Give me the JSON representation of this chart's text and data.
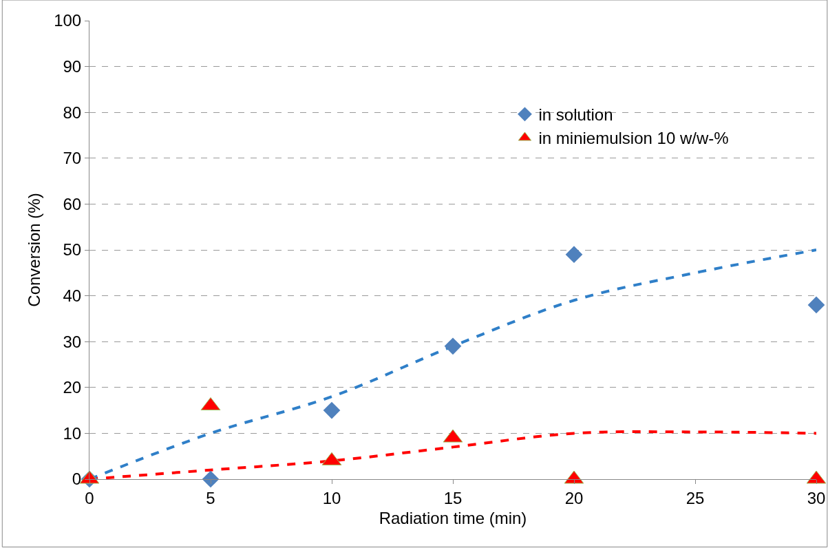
{
  "chart_data": {
    "type": "scatter",
    "xlabel": "Radiation time (min)",
    "ylabel": "Conversion (%)",
    "xlim": [
      0,
      30
    ],
    "xticks": [
      0,
      5,
      10,
      15,
      20,
      25,
      30
    ],
    "ylim": [
      0,
      100
    ],
    "yticks": [
      0,
      10,
      20,
      30,
      40,
      50,
      60,
      70,
      80,
      90,
      100
    ],
    "grid": "y",
    "legend": "right",
    "series": [
      {
        "name": "in solution",
        "marker": "diamond",
        "color": "#4f81bd",
        "x": [
          0,
          5,
          10,
          15,
          20,
          30
        ],
        "values": [
          0,
          0,
          15,
          29,
          49,
          38
        ]
      },
      {
        "name": "in miniemulsion 10 w/w-%",
        "marker": "triangle",
        "color": "#ff0000",
        "x": [
          0,
          5,
          10,
          15,
          20,
          30
        ],
        "values": [
          0,
          16,
          4,
          9,
          0,
          0
        ]
      },
      {
        "type": "line",
        "line_style": "dashed",
        "color": "#2f7fc8",
        "x": [
          0,
          5,
          10,
          15,
          20,
          25,
          30
        ],
        "values": [
          0,
          10,
          18,
          29,
          39,
          45,
          50
        ]
      },
      {
        "type": "line",
        "line_style": "dashed",
        "color": "#ff0000",
        "x": [
          0,
          5,
          10,
          15,
          20,
          25,
          30
        ],
        "values": [
          0,
          2,
          4,
          7,
          10,
          10.3,
          10
        ]
      }
    ]
  }
}
